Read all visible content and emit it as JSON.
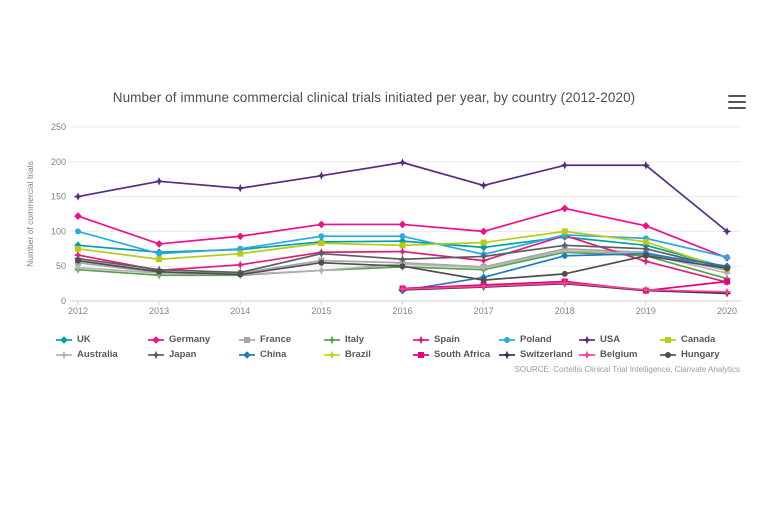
{
  "header": {
    "menu_icon": "hamburger-export-menu"
  },
  "source": "SOURCE: Cortellis Clinical Trial Intelligence, Clarivate Analytics",
  "chart_data": {
    "type": "line",
    "title": "Number of immune commercial clinical trials initiated per year, by country (2012-2020)",
    "xlabel": "",
    "ylabel": "Number of commercial trials",
    "categories": [
      "2012",
      "2013",
      "2014",
      "2015",
      "2016",
      "2017",
      "2018",
      "2019",
      "2020"
    ],
    "ylim": [
      0,
      250
    ],
    "yticks": [
      0,
      50,
      100,
      150,
      200,
      250
    ],
    "grid": true,
    "legend_position": "bottom",
    "series": [
      {
        "name": "UK",
        "color": "#00a0a5",
        "marker": "diamond",
        "values": [
          80,
          70,
          74,
          85,
          86,
          77,
          92,
          80,
          48
        ]
      },
      {
        "name": "Germany",
        "color": "#f20d8a",
        "marker": "diamond",
        "values": [
          122,
          82,
          93,
          110,
          110,
          100,
          133,
          108,
          62
        ]
      },
      {
        "name": "France",
        "color": "#a6a6a8",
        "marker": "square",
        "values": [
          55,
          41,
          40,
          58,
          55,
          49,
          75,
          70,
          44
        ]
      },
      {
        "name": "Italy",
        "color": "#55a546",
        "marker": "star",
        "values": [
          45,
          37,
          37,
          44,
          49,
          45,
          70,
          65,
          32
        ]
      },
      {
        "name": "Spain",
        "color": "#e31c79",
        "marker": "star",
        "values": [
          66,
          44,
          52,
          70,
          71,
          58,
          94,
          57,
          27
        ]
      },
      {
        "name": "Poland",
        "color": "#29abe2",
        "marker": "circle",
        "values": [
          100,
          68,
          75,
          93,
          93,
          67,
          95,
          90,
          63
        ]
      },
      {
        "name": "USA",
        "color": "#582c83",
        "marker": "star",
        "values": [
          150,
          172,
          162,
          180,
          199,
          166,
          195,
          195,
          100
        ]
      },
      {
        "name": "Canada",
        "color": "#b5cc18",
        "marker": "square",
        "values": [
          75,
          60,
          68,
          83,
          80,
          84,
          100,
          85,
          45
        ]
      },
      {
        "name": "Australia",
        "color": "#b3b3b5",
        "marker": "star",
        "values": [
          48,
          40,
          38,
          44,
          53,
          48,
          72,
          68,
          40
        ]
      },
      {
        "name": "Japan",
        "color": "#5e5e60",
        "marker": "star",
        "values": [
          61,
          45,
          41,
          68,
          60,
          64,
          80,
          75,
          47
        ]
      },
      {
        "name": "China",
        "color": "#1f7ac2",
        "marker": "diamond",
        "values": [
          null,
          null,
          null,
          null,
          15,
          34,
          65,
          68,
          50
        ]
      },
      {
        "name": "Brazil",
        "color": "#c6d420",
        "marker": "star",
        "values": [
          null,
          null,
          null,
          null,
          17,
          22,
          25,
          16,
          12
        ]
      },
      {
        "name": "South Africa",
        "color": "#e6007e",
        "marker": "square",
        "values": [
          null,
          null,
          null,
          null,
          18,
          23,
          28,
          15,
          28
        ]
      },
      {
        "name": "Switzerland",
        "color": "#3f2a56",
        "marker": "star",
        "values": [
          null,
          null,
          null,
          null,
          16,
          20,
          25,
          15,
          11
        ]
      },
      {
        "name": "Belgium",
        "color": "#f5418f",
        "marker": "star",
        "values": [
          null,
          null,
          null,
          null,
          17,
          21,
          26,
          16,
          13
        ]
      },
      {
        "name": "Hungary",
        "color": "#4f4f51",
        "marker": "circle",
        "values": [
          58,
          42,
          38,
          55,
          50,
          30,
          39,
          65,
          47
        ]
      }
    ]
  }
}
